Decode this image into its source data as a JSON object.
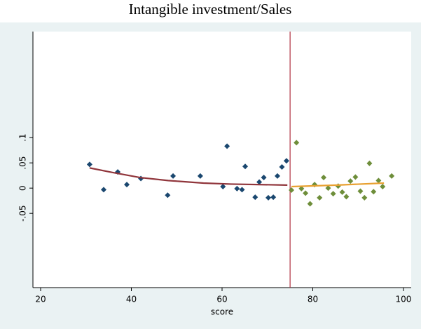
{
  "chart_data": {
    "type": "scatter",
    "title": "Intangible investment/Sales",
    "x_label": "score",
    "xlim": [
      18.3,
      101.7
    ],
    "ylim": [
      -0.197,
      0.31
    ],
    "xticks": [
      20,
      40,
      60,
      80,
      100
    ],
    "yticks": [
      {
        "value": 0.1,
        "label": ".1"
      },
      {
        "value": 0.05,
        "label": ".05"
      },
      0,
      {
        "value": -0.05,
        "label": "-.05"
      }
    ],
    "xline": 75,
    "xline_color": "#b03040",
    "grid": false,
    "series": [
      {
        "style": "marker",
        "color": "#1a476f",
        "x": [
          30.8,
          33.9,
          37.0,
          39.0,
          42.1,
          48.0,
          49.2,
          55.2,
          60.2,
          61.1,
          63.3,
          64.4,
          65.1,
          67.3,
          68.2,
          69.2,
          70.2,
          71.3,
          72.2,
          73.2,
          74.2
        ],
        "values": [
          0.047,
          -0.003,
          0.032,
          0.007,
          0.019,
          -0.014,
          0.024,
          0.024,
          0.003,
          0.083,
          -0.001,
          -0.003,
          0.043,
          -0.018,
          0.012,
          0.021,
          -0.019,
          -0.018,
          0.024,
          0.042,
          0.054
        ]
      },
      {
        "style": "marker",
        "color": "#6e8e3a",
        "x": [
          75.3,
          76.4,
          77.5,
          78.4,
          79.4,
          80.4,
          81.5,
          82.4,
          83.4,
          84.5,
          85.6,
          86.5,
          87.4,
          88.3,
          89.4,
          90.5,
          91.4,
          92.5,
          93.4,
          94.5,
          95.4,
          97.4
        ],
        "values": [
          -0.004,
          0.09,
          -0.001,
          -0.01,
          -0.031,
          0.007,
          -0.019,
          0.021,
          0.0,
          -0.011,
          0.004,
          -0.008,
          -0.017,
          0.014,
          0.022,
          -0.006,
          -0.019,
          0.049,
          -0.007,
          0.015,
          0.003,
          0.024
        ]
      },
      {
        "style": "line",
        "color": "#90353b",
        "x": [
          30.8,
          35.8,
          41.9,
          48.1,
          55.9,
          62.0,
          74.4
        ],
        "values": [
          0.04,
          0.031,
          0.021,
          0.015,
          0.01,
          0.008,
          0.006
        ]
      },
      {
        "style": "line",
        "color": "#e8a030",
        "x": [
          75.3,
          85.3,
          95.7
        ],
        "values": [
          0.003,
          0.006,
          0.01
        ]
      }
    ]
  }
}
